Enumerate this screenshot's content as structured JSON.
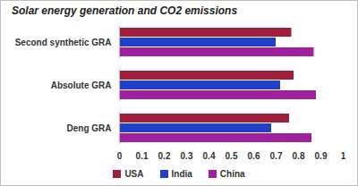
{
  "chart_data": {
    "type": "bar",
    "orientation": "horizontal",
    "title": "Solar energy generation and CO2 emissions",
    "categories": [
      "Second synthetic GRA",
      "Absolute GRA",
      "Deng GRA"
    ],
    "series": [
      {
        "name": "USA",
        "color": "#a0203c",
        "values": [
          0.77,
          0.78,
          0.76
        ]
      },
      {
        "name": "India",
        "color": "#2040c8",
        "values": [
          0.7,
          0.72,
          0.68
        ]
      },
      {
        "name": "China",
        "color": "#a020a0",
        "values": [
          0.87,
          0.88,
          0.86
        ]
      }
    ],
    "xlim": [
      0,
      1
    ],
    "xticks": [
      0,
      0.1,
      0.2,
      0.3,
      0.4,
      0.5,
      0.6,
      0.7,
      0.8,
      0.9,
      1
    ],
    "grid": false,
    "legend": "bottom"
  }
}
